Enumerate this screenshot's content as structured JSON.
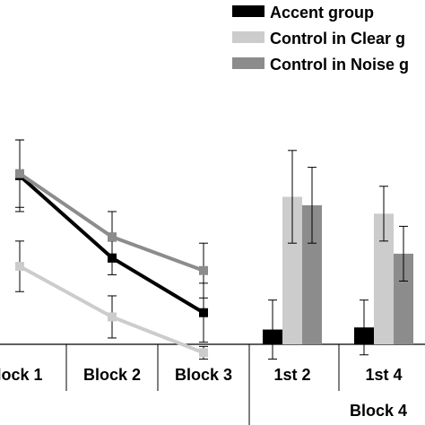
{
  "chart_data": {
    "type": "bar",
    "title": "",
    "xlabel": "",
    "ylabel": "",
    "legend": {
      "position": "top-right",
      "entries": [
        {
          "name": "Accent group",
          "color": "#000000"
        },
        {
          "name": "Control in Clear g",
          "color": "#cccccc"
        },
        {
          "name": "Control in Noise g",
          "color": "#8c8c8c"
        }
      ]
    },
    "x_labels": [
      "lock 1",
      "Block 2",
      "Block 3",
      "1st 2",
      "1st 4"
    ],
    "group_label": "Block 4",
    "ylim": [
      0,
      100
    ],
    "lines": [
      {
        "series": "Accent group",
        "color": "#000000",
        "points": [
          {
            "x": "lock 1",
            "y": 80,
            "err": 17
          },
          {
            "x": "Block 2",
            "y": 41,
            "err": 8
          },
          {
            "x": "Block 3",
            "y": 15,
            "err": 14
          }
        ]
      },
      {
        "series": "Control in Clear g",
        "color": "#cccccc",
        "points": [
          {
            "x": "lock 1",
            "y": 37,
            "err": 12
          },
          {
            "x": "Block 2",
            "y": 13,
            "err": 10
          },
          {
            "x": "Block 3",
            "y": -4,
            "err": 3
          }
        ]
      },
      {
        "series": "Control in Noise g",
        "color": "#8c8c8c",
        "points": [
          {
            "x": "lock 1",
            "y": 81,
            "err": 16
          },
          {
            "x": "Block 2",
            "y": 51,
            "err": 12
          },
          {
            "x": "Block 3",
            "y": 35,
            "err": 13
          }
        ]
      }
    ],
    "bars": [
      {
        "group": "1st 2",
        "values": [
          {
            "series": "Accent group",
            "y": 7,
            "err": 14
          },
          {
            "series": "Control in Clear g",
            "y": 70,
            "err": 22
          },
          {
            "series": "Control in Noise g",
            "y": 66,
            "err": 18
          }
        ]
      },
      {
        "group": "1st 4",
        "values": [
          {
            "series": "Accent group",
            "y": 8,
            "err": 13
          },
          {
            "series": "Control in Clear g",
            "y": 62,
            "err": 13
          },
          {
            "series": "Control in Noise g",
            "y": 43,
            "err": 13
          }
        ]
      }
    ]
  }
}
